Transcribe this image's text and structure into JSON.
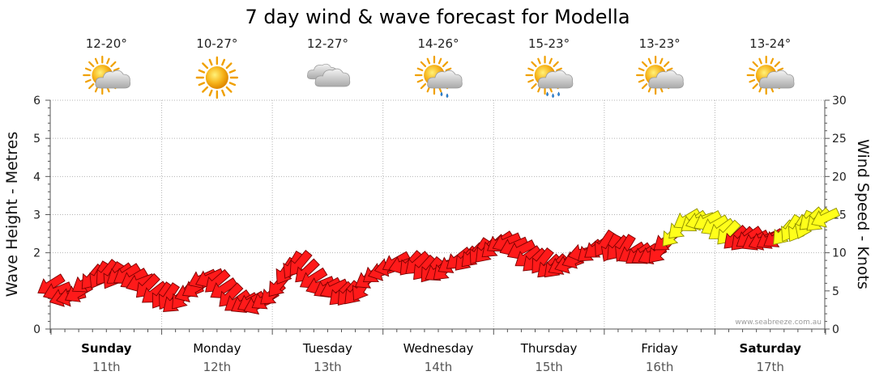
{
  "chart_data": {
    "type": "line",
    "title": "7 day wind & wave forecast for Modella",
    "ylabel_left": "Wave Height - Metres",
    "ylabel_right": "Wind Speed - Knots",
    "ylim_left": [
      0,
      6
    ],
    "ylim_right": [
      0,
      30
    ],
    "left_ticks": [
      "0",
      "2",
      "3",
      "4",
      "5",
      "6"
    ],
    "right_ticks": [
      "0",
      "5",
      "10",
      "15",
      "20",
      "25",
      "30"
    ],
    "grid": true,
    "watermark": "www.seabreeze.com.au",
    "days": [
      {
        "name": "Sunday",
        "date": "11th",
        "temp": "12-20°",
        "weather": "partly-cloudy-icon",
        "bold": true
      },
      {
        "name": "Monday",
        "date": "12th",
        "temp": "10-27°",
        "weather": "sunny-icon",
        "bold": false
      },
      {
        "name": "Tuesday",
        "date": "13th",
        "temp": "12-27°",
        "weather": "cloudy-icon",
        "bold": false
      },
      {
        "name": "Wednesday",
        "date": "14th",
        "temp": "14-26°",
        "weather": "showers-icon",
        "bold": false
      },
      {
        "name": "Thursday",
        "date": "15th",
        "temp": "15-23°",
        "weather": "rain-icon",
        "bold": false
      },
      {
        "name": "Friday",
        "date": "16th",
        "temp": "13-23°",
        "weather": "partly-cloudy-icon",
        "bold": false
      },
      {
        "name": "Saturday",
        "date": "17th",
        "temp": "13-24°",
        "weather": "partly-cloudy-icon",
        "bold": true
      }
    ],
    "wind_series": {
      "name": "Wind Speed",
      "units": "knots",
      "x_days": [
        0,
        0.12,
        0.25,
        0.37,
        0.5,
        0.62,
        0.75,
        0.87,
        1.0,
        1.12,
        1.25,
        1.37,
        1.5,
        1.62,
        1.75,
        1.87,
        2.0,
        2.12,
        2.25,
        2.37,
        2.5,
        2.62,
        2.75,
        2.87,
        3.0,
        3.12,
        3.25,
        3.37,
        3.5,
        3.62,
        3.75,
        3.87,
        4.0,
        4.12,
        4.25,
        4.37,
        4.5,
        4.62,
        4.75,
        4.87,
        5.0,
        5.12,
        5.25,
        5.37,
        5.5,
        5.62,
        5.75,
        5.87,
        6.0,
        6.12,
        6.25,
        6.37,
        6.5,
        6.62,
        6.75,
        6.87,
        7.0
      ],
      "values": [
        5.8,
        4.2,
        4.8,
        6.8,
        7.4,
        7.2,
        6.6,
        5.6,
        4.4,
        3.6,
        4.8,
        6.6,
        6.2,
        4.4,
        3.4,
        3.2,
        4.6,
        7.6,
        8.6,
        6.6,
        5.4,
        4.6,
        4.8,
        6.6,
        7.6,
        8.8,
        8.6,
        8.0,
        7.6,
        8.6,
        9.2,
        10.2,
        10.8,
        11.4,
        10.4,
        9.0,
        8.2,
        8.4,
        9.2,
        10.2,
        11.2,
        10.6,
        10.0,
        9.8,
        10.2,
        12.4,
        14.4,
        14.2,
        13.6,
        12.6,
        11.8,
        11.6,
        11.8,
        12.6,
        13.2,
        14.4,
        14.6
      ],
      "arrow_colors": [
        "#ff1a1a",
        "#ffff1a"
      ],
      "yellow_threshold_knots": 12.4
    }
  }
}
